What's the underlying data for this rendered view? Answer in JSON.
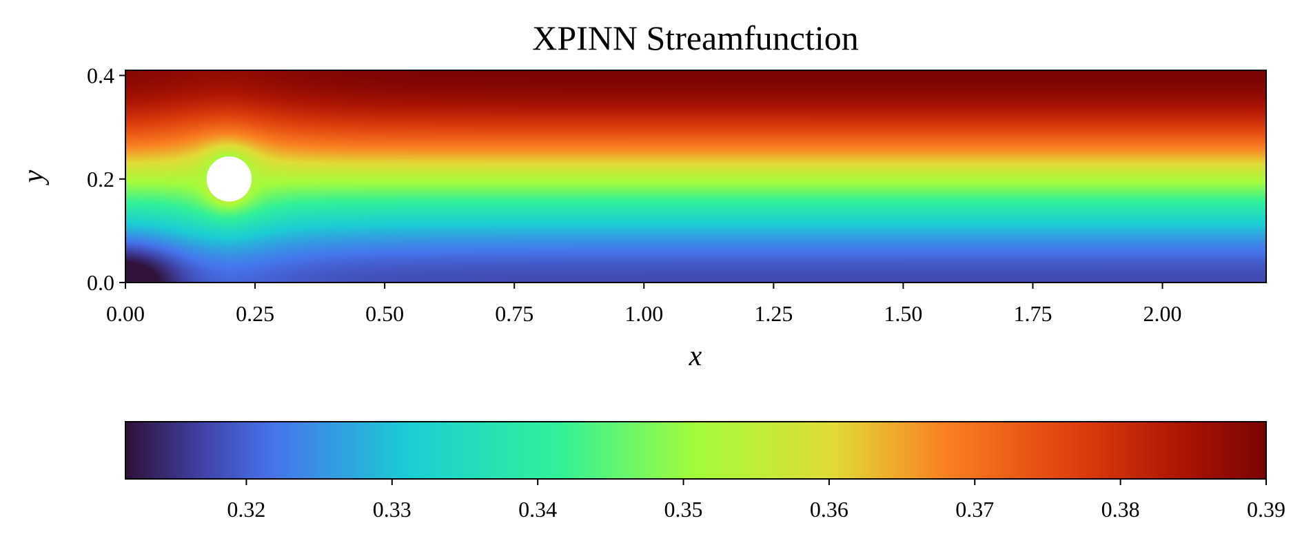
{
  "chart_data": {
    "type": "heatmap",
    "title": "XPINN Streamfunction",
    "xlabel": "x",
    "ylabel": "y",
    "xlim": [
      0.0,
      2.2
    ],
    "ylim": [
      0.0,
      0.41
    ],
    "xticks": [
      "0.00",
      "0.25",
      "0.50",
      "0.75",
      "1.00",
      "1.25",
      "1.50",
      "1.75",
      "2.00"
    ],
    "xtick_values": [
      0.0,
      0.25,
      0.5,
      0.75,
      1.0,
      1.25,
      1.5,
      1.75,
      2.0
    ],
    "yticks": [
      "0.0",
      "0.2",
      "0.4"
    ],
    "ytick_values": [
      0.0,
      0.2,
      0.4
    ],
    "colormap": "turbo",
    "colorbar": {
      "orientation": "horizontal",
      "range": [
        0.3117,
        0.39
      ],
      "ticks": [
        "0.32",
        "0.33",
        "0.34",
        "0.35",
        "0.36",
        "0.37",
        "0.38",
        "0.39"
      ],
      "tick_values": [
        0.32,
        0.33,
        0.34,
        0.35,
        0.36,
        0.37,
        0.38,
        0.39
      ]
    },
    "obstacle": {
      "shape": "circle",
      "center": [
        0.2,
        0.2
      ],
      "radius": 0.05,
      "fill": "#ffffff"
    },
    "field_samples": {
      "y": [
        0.0,
        0.05,
        0.1,
        0.15,
        0.2,
        0.25,
        0.3,
        0.35,
        0.41
      ],
      "psi_downstream": [
        0.318,
        0.322,
        0.328,
        0.338,
        0.349,
        0.36,
        0.371,
        0.381,
        0.388
      ]
    }
  }
}
